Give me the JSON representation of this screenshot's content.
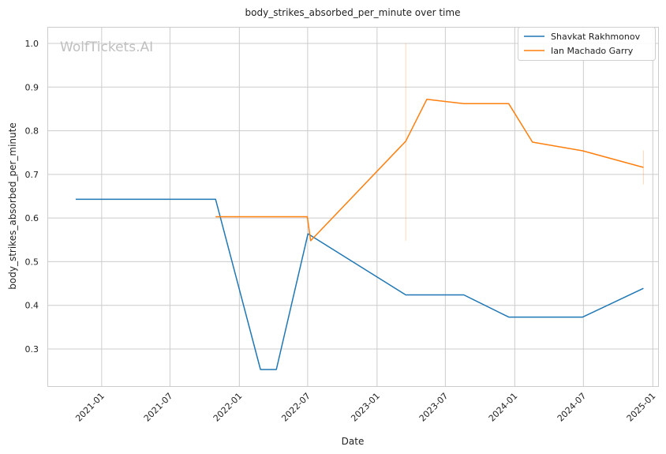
{
  "watermark": "WolfTickets.AI",
  "chart_data": {
    "type": "line",
    "title": "body_strikes_absorbed_per_minute over time",
    "xlabel": "Date",
    "ylabel": "body_strikes_absorbed_per_minute",
    "x_ticks": [
      "2021-01",
      "2021-07",
      "2022-01",
      "2022-07",
      "2023-01",
      "2023-07",
      "2024-01",
      "2024-07",
      "2025-01"
    ],
    "y_ticks": [
      "0.3",
      "0.4",
      "0.5",
      "0.6",
      "0.7",
      "0.8",
      "0.9",
      "1.0"
    ],
    "xlim": [
      "2020-08-10",
      "2025-01-15"
    ],
    "ylim": [
      0.215,
      1.038
    ],
    "grid": true,
    "legend": "top-right",
    "series": [
      {
        "name": "Shavkat Rakhmonov",
        "color": "#1f77b4",
        "points": [
          {
            "x": "2020-10-24",
            "y": 0.643
          },
          {
            "x": "2021-10-30",
            "y": 0.643
          },
          {
            "x": "2022-02-26",
            "y": 0.253
          },
          {
            "x": "2022-04-09",
            "y": 0.253
          },
          {
            "x": "2022-07-02",
            "y": 0.564
          },
          {
            "x": "2023-03-18",
            "y": 0.424
          },
          {
            "x": "2023-08-19",
            "y": 0.424
          },
          {
            "x": "2023-12-16",
            "y": 0.373
          },
          {
            "x": "2024-06-29",
            "y": 0.373
          },
          {
            "x": "2024-12-07",
            "y": 0.439
          }
        ]
      },
      {
        "name": "Ian Machado Garry",
        "color": "#ff7f0e",
        "points": [
          {
            "x": "2021-10-30",
            "y": 0.603
          },
          {
            "x": "2022-06-30",
            "y": 0.603
          },
          {
            "x": "2022-07-09",
            "y": 0.548
          },
          {
            "x": "2023-03-18",
            "y": 0.776
          },
          {
            "x": "2023-05-13",
            "y": 0.872
          },
          {
            "x": "2023-08-19",
            "y": 0.862
          },
          {
            "x": "2023-12-16",
            "y": 0.862
          },
          {
            "x": "2024-02-17",
            "y": 0.774
          },
          {
            "x": "2024-06-29",
            "y": 0.754
          },
          {
            "x": "2024-12-07",
            "y": 0.716
          }
        ],
        "error_bars": [
          {
            "x": "2023-03-18",
            "low": 0.548,
            "high": 1.0
          },
          {
            "x": "2024-12-07",
            "low": 0.677,
            "high": 0.755
          }
        ]
      }
    ]
  }
}
